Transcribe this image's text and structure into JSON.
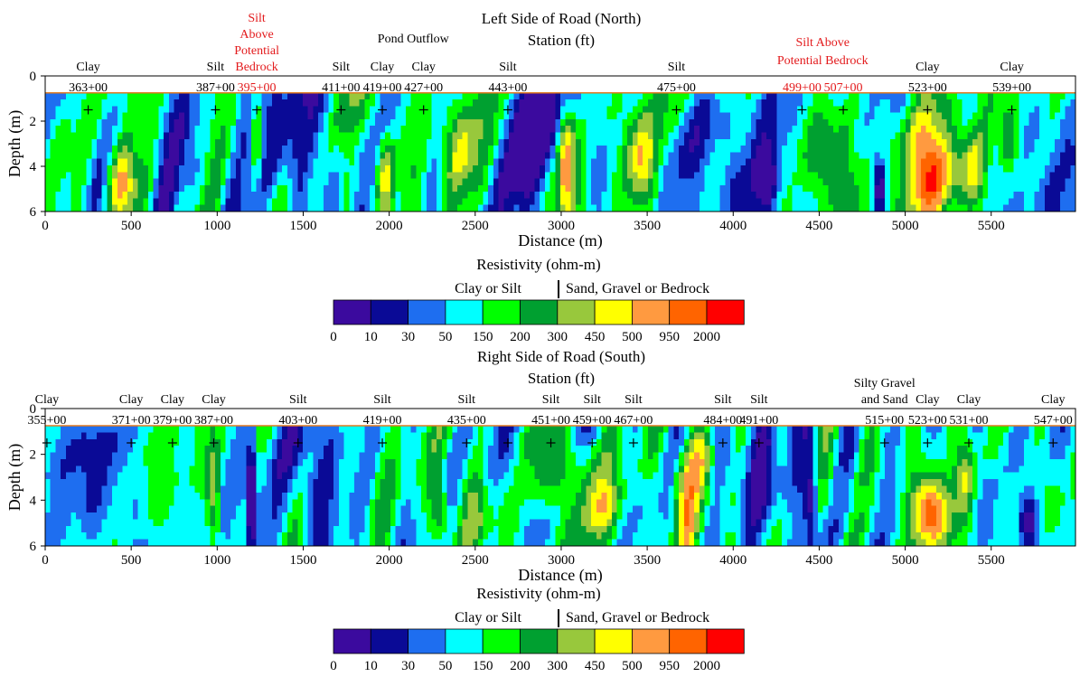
{
  "chart_data": [
    {
      "type": "heatmap",
      "title": "Left Side of Road (North)",
      "subtitle": "Station (ft)",
      "xlabel": "Distance (m)",
      "ylabel": "Depth (m)",
      "xlim": [
        0,
        5990
      ],
      "ylim": [
        6,
        0
      ],
      "x_ticks": [
        "0",
        "500",
        "1000",
        "1500",
        "2000",
        "2500",
        "3000",
        "3500",
        "4000",
        "4500",
        "5000",
        "5500"
      ],
      "y_ticks": [
        "0",
        "2",
        "4",
        "6"
      ],
      "stations": [
        {
          "label": "363+00",
          "x": 250,
          "annotation": [
            "Clay"
          ],
          "alert": false
        },
        {
          "label": "387+00",
          "x": 990,
          "annotation": [
            "Silt"
          ],
          "alert": false
        },
        {
          "label": "395+00",
          "x": 1230,
          "annotation": [
            "Silt",
            "Above",
            "Potential",
            "Bedrock"
          ],
          "alert": true
        },
        {
          "label": "411+00",
          "x": 1720,
          "annotation": [
            "Silt"
          ],
          "alert": false
        },
        {
          "label": "419+00",
          "x": 1960,
          "annotation": [
            "Clay"
          ],
          "alert": false
        },
        {
          "label": "427+00",
          "x": 2200,
          "annotation": [
            "Clay"
          ],
          "alert": false
        },
        {
          "label": "443+00",
          "x": 2690,
          "annotation": [
            "Silt"
          ],
          "alert": false
        },
        {
          "label": "475+00",
          "x": 3670,
          "annotation": [
            "Silt"
          ],
          "alert": false
        },
        {
          "label": "499+00",
          "x": 4400,
          "annotation": [],
          "alert": true
        },
        {
          "label": "507+00",
          "x": 4640,
          "annotation": [],
          "alert": true
        },
        {
          "label": "523+00",
          "x": 5130,
          "annotation": [
            "Clay"
          ],
          "alert": false
        },
        {
          "label": "539+00",
          "x": 5620,
          "annotation": [
            "Clay"
          ],
          "alert": false
        }
      ],
      "extra_annotations": [
        {
          "text": "Pond Outflow",
          "x": 2140,
          "alert": false
        },
        {
          "text": "Silt Above",
          "x": 4520,
          "alert": true
        },
        {
          "text": "Potential Bedrock",
          "x": 4520,
          "alert": true
        }
      ]
    },
    {
      "type": "heatmap",
      "title": "Right Side of Road (South)",
      "subtitle": "Station (ft)",
      "xlabel": "Distance (m)",
      "ylabel": "Depth (m)",
      "xlim": [
        0,
        5990
      ],
      "ylim": [
        6,
        0
      ],
      "x_ticks": [
        "0",
        "500",
        "1000",
        "1500",
        "2000",
        "2500",
        "3000",
        "3500",
        "4000",
        "4500",
        "5000",
        "5500"
      ],
      "y_ticks": [
        "0",
        "2",
        "4",
        "6"
      ],
      "stations": [
        {
          "label": "355+00",
          "x": 10,
          "annotation": [
            "Clay"
          ]
        },
        {
          "label": "371+00",
          "x": 500,
          "annotation": [
            "Clay"
          ]
        },
        {
          "label": "379+00",
          "x": 740,
          "annotation": [
            "Clay"
          ]
        },
        {
          "label": "387+00",
          "x": 980,
          "annotation": [
            "Clay"
          ]
        },
        {
          "label": "403+00",
          "x": 1470,
          "annotation": [
            "Silt"
          ]
        },
        {
          "label": "419+00",
          "x": 1960,
          "annotation": [
            "Silt"
          ]
        },
        {
          "label": "435+00",
          "x": 2450,
          "annotation": [
            "Silt"
          ]
        },
        {
          "label": "451+00",
          "x": 2940,
          "annotation": [
            "Silt"
          ]
        },
        {
          "label": "459+00",
          "x": 3180,
          "annotation": [
            "Silt"
          ]
        },
        {
          "label": "467+00",
          "x": 3420,
          "annotation": [
            "Silt"
          ]
        },
        {
          "label": "484+00",
          "x": 3940,
          "annotation": [
            "Silt"
          ]
        },
        {
          "label": "491+00",
          "x": 4150,
          "annotation": [
            "Silt"
          ]
        },
        {
          "label": "515+00",
          "x": 4880,
          "annotation": [
            "Silty Gravel",
            "and Sand"
          ]
        },
        {
          "label": "523+00",
          "x": 5130,
          "annotation": [
            "Clay"
          ]
        },
        {
          "label": "531+00",
          "x": 5370,
          "annotation": [
            "Clay"
          ]
        },
        {
          "label": "547+00",
          "x": 5860,
          "annotation": [
            "Clay"
          ]
        }
      ],
      "extra_points": [
        2690
      ]
    }
  ],
  "legend": {
    "title": "Resistivity (ohm-m)",
    "left_label": "Clay or Silt",
    "right_label": "Sand, Gravel or Bedrock",
    "boundaries": [
      "0",
      "10",
      "30",
      "50",
      "150",
      "200",
      "300",
      "450",
      "500",
      "950",
      "2000"
    ],
    "colors": [
      "#3b0a9e",
      "#0a0a96",
      "#1e6ef0",
      "#00ffff",
      "#00ff00",
      "#00a030",
      "#98c83c",
      "#ffff00",
      "#ff9a40",
      "#ff6400",
      "#ff0000"
    ]
  }
}
